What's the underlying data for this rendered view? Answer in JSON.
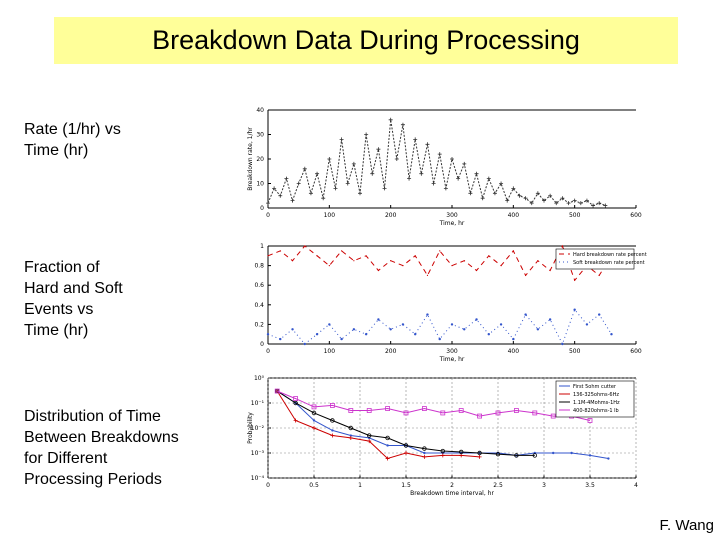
{
  "title": "Breakdown Data During Processing",
  "labels": [
    "Rate (1/hr) vs\nTime (hr)",
    "Fraction of\nHard and Soft\nEvents vs\nTime (hr)",
    "Distribution of Time\nBetween Breakdowns\nfor Different\nProcessing Periods"
  ],
  "footer": "F. Wang",
  "colors": {
    "title_bg": "#ffff99",
    "hard": "#cc0000",
    "soft": "#3355cc",
    "magenta": "#cc33cc"
  },
  "chart_data": [
    {
      "type": "line",
      "xlabel": "Time, hr",
      "ylabel": "Breakdown rate, 1/hr",
      "xlim": [
        0,
        600
      ],
      "ylim": [
        0,
        40
      ],
      "xticks": [
        "0",
        "100",
        "200",
        "300",
        "400",
        "500",
        "600"
      ],
      "yticks": [
        "0",
        "10",
        "20",
        "30",
        "40"
      ],
      "series": [
        {
          "x": [
            0,
            10,
            20,
            30,
            40,
            50,
            60,
            70,
            80,
            90,
            100,
            110,
            120,
            130,
            140,
            150,
            160,
            170,
            180,
            190,
            200,
            210,
            220,
            230,
            240,
            250,
            260,
            270,
            280,
            290,
            300,
            310,
            320,
            330,
            340,
            350,
            360,
            370,
            380,
            390,
            400,
            410,
            420,
            430,
            440,
            450,
            460,
            470,
            480,
            490,
            500,
            510,
            520,
            530,
            540,
            550
          ],
          "y": [
            2,
            8,
            5,
            12,
            3,
            10,
            16,
            6,
            14,
            4,
            20,
            8,
            28,
            10,
            18,
            6,
            30,
            14,
            24,
            8,
            36,
            20,
            34,
            12,
            28,
            14,
            26,
            10,
            22,
            8,
            20,
            12,
            18,
            6,
            14,
            4,
            12,
            6,
            10,
            3,
            8,
            5,
            4,
            2,
            6,
            3,
            5,
            2,
            4,
            2,
            3,
            2,
            3,
            1,
            2,
            1
          ]
        }
      ]
    },
    {
      "type": "line",
      "xlabel": "Time, hr",
      "ylabel": "",
      "xlim": [
        0,
        600
      ],
      "ylim": [
        0,
        1
      ],
      "xticks": [
        "0",
        "100",
        "200",
        "300",
        "400",
        "500",
        "600"
      ],
      "yticks": [
        "0",
        "0.2",
        "0.4",
        "0.6",
        "0.8",
        "1"
      ],
      "legend": [
        "Hard breakdown rate percent",
        "Soft breakdown rate percent"
      ],
      "legend_position": "top-right",
      "series": [
        {
          "name": "Hard breakdown rate percent",
          "x": [
            0,
            20,
            40,
            60,
            80,
            100,
            120,
            140,
            160,
            180,
            200,
            220,
            240,
            260,
            280,
            300,
            320,
            340,
            360,
            380,
            400,
            420,
            440,
            460,
            480,
            500,
            520,
            540,
            560
          ],
          "y": [
            0.9,
            0.95,
            0.85,
            1.0,
            0.9,
            0.8,
            0.95,
            0.85,
            0.9,
            0.75,
            0.85,
            0.8,
            0.9,
            0.7,
            0.95,
            0.8,
            0.85,
            0.75,
            0.9,
            0.8,
            0.95,
            0.7,
            0.85,
            0.75,
            1.0,
            0.65,
            0.8,
            0.7,
            0.9
          ]
        },
        {
          "name": "Soft breakdown rate percent",
          "x": [
            0,
            20,
            40,
            60,
            80,
            100,
            120,
            140,
            160,
            180,
            200,
            220,
            240,
            260,
            280,
            300,
            320,
            340,
            360,
            380,
            400,
            420,
            440,
            460,
            480,
            500,
            520,
            540,
            560
          ],
          "y": [
            0.1,
            0.05,
            0.15,
            0.0,
            0.1,
            0.2,
            0.05,
            0.15,
            0.1,
            0.25,
            0.15,
            0.2,
            0.1,
            0.3,
            0.05,
            0.2,
            0.15,
            0.25,
            0.1,
            0.2,
            0.05,
            0.3,
            0.15,
            0.25,
            0.0,
            0.35,
            0.2,
            0.3,
            0.1
          ]
        }
      ]
    },
    {
      "type": "line",
      "xlabel": "Breakdown time interval, hr",
      "ylabel": "Probability",
      "xlim": [
        0,
        4
      ],
      "ylim": [
        0.0001,
        1
      ],
      "yscale": "log",
      "grid": true,
      "xticks": [
        "0",
        "0.5",
        "1",
        "1.5",
        "2",
        "2.5",
        "3",
        "3.5",
        "4"
      ],
      "yticks": [
        "10⁰",
        "10⁻¹",
        "10⁻²",
        "10⁻³",
        "10⁻⁴"
      ],
      "legend": [
        "First 5ohm cutter",
        "136-325ohms-6Hz",
        "1.1M-4Mohms-1Hz",
        "400-820ohms-1 lb"
      ],
      "legend_position": "top-right",
      "series": [
        {
          "name": "First 5ohm cutter",
          "x": [
            0.1,
            0.3,
            0.5,
            0.7,
            0.9,
            1.1,
            1.3,
            1.5,
            1.7,
            1.9,
            2.1,
            2.3,
            2.5,
            2.7,
            2.9,
            3.1,
            3.3,
            3.5,
            3.7
          ],
          "y": [
            0.3,
            0.1,
            0.02,
            0.008,
            0.005,
            0.004,
            0.002,
            0.002,
            0.001,
            0.001,
            0.001,
            0.001,
            0.001,
            0.0008,
            0.001,
            0.001,
            0.001,
            0.0008,
            0.0006
          ]
        },
        {
          "name": "136-325ohms-6Hz",
          "x": [
            0.1,
            0.3,
            0.5,
            0.7,
            0.9,
            1.1,
            1.3,
            1.5,
            1.7,
            1.9,
            2.1,
            2.3
          ],
          "y": [
            0.3,
            0.02,
            0.01,
            0.005,
            0.004,
            0.003,
            0.0006,
            0.001,
            0.0007,
            0.0008,
            0.0008,
            0.0007
          ]
        },
        {
          "name": "1.1M-4Mohms-1Hz",
          "x": [
            0.1,
            0.3,
            0.5,
            0.7,
            0.9,
            1.1,
            1.3,
            1.5,
            1.7,
            1.9,
            2.1,
            2.3,
            2.5,
            2.7,
            2.9
          ],
          "y": [
            0.3,
            0.1,
            0.04,
            0.02,
            0.01,
            0.005,
            0.004,
            0.002,
            0.0015,
            0.0012,
            0.0011,
            0.001,
            0.0009,
            0.0008,
            0.0008
          ]
        },
        {
          "name": "400-820ohms-1 lb",
          "x": [
            0.1,
            0.3,
            0.5,
            0.7,
            0.9,
            1.1,
            1.3,
            1.5,
            1.7,
            1.9,
            2.1,
            2.3,
            2.5,
            2.7,
            2.9,
            3.1,
            3.3,
            3.5
          ],
          "y": [
            0.3,
            0.15,
            0.07,
            0.08,
            0.05,
            0.05,
            0.06,
            0.04,
            0.06,
            0.04,
            0.05,
            0.03,
            0.04,
            0.05,
            0.04,
            0.03,
            0.03,
            0.02
          ]
        }
      ]
    }
  ]
}
